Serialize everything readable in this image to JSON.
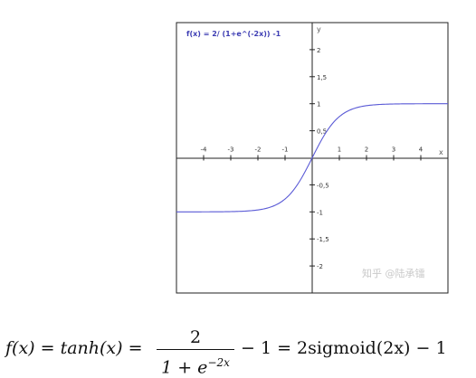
{
  "chart_data": {
    "type": "line",
    "title": "f(x) = 2/ (1+e^(-2x)) -1",
    "xlabel": "x",
    "ylabel": "y",
    "xlim": [
      -5,
      5
    ],
    "ylim": [
      -2.5,
      2.5
    ],
    "x_ticks": [
      -4,
      -3,
      -2,
      -1,
      1,
      2,
      3,
      4
    ],
    "x_tick_labels": [
      "-4",
      "-3",
      "-2",
      "-1",
      "1",
      "2",
      "3",
      "4"
    ],
    "y_ticks": [
      2,
      1.5,
      1,
      0.5,
      -0.5,
      -1,
      -1.5,
      -2
    ],
    "y_tick_labels": [
      "2",
      "1,5",
      "1",
      "0,5",
      "-0,5",
      "-1",
      "-1,5",
      "-2"
    ],
    "series": [
      {
        "name": "tanh",
        "function": "2/(1+e^(-2x))-1",
        "x": [
          -5,
          -4,
          -3,
          -2.5,
          -2,
          -1.5,
          -1,
          -0.5,
          0,
          0.5,
          1,
          1.5,
          2,
          2.5,
          3,
          4,
          5
        ],
        "y": [
          -1.0,
          -0.999,
          -0.995,
          -0.987,
          -0.964,
          -0.905,
          -0.762,
          -0.462,
          0,
          0.462,
          0.762,
          0.905,
          0.964,
          0.987,
          0.995,
          0.999,
          1.0
        ],
        "color": "#5a5ad6"
      }
    ],
    "grid": false,
    "watermark": "知乎 @陆承镭"
  },
  "formula": {
    "lhs": "f(x) = tanh(x) =",
    "numerator": "2",
    "denominator_base": "1 + e",
    "denominator_exponent": "−2x",
    "rhs": "− 1 = 2sigmoid(2x) − 1"
  }
}
